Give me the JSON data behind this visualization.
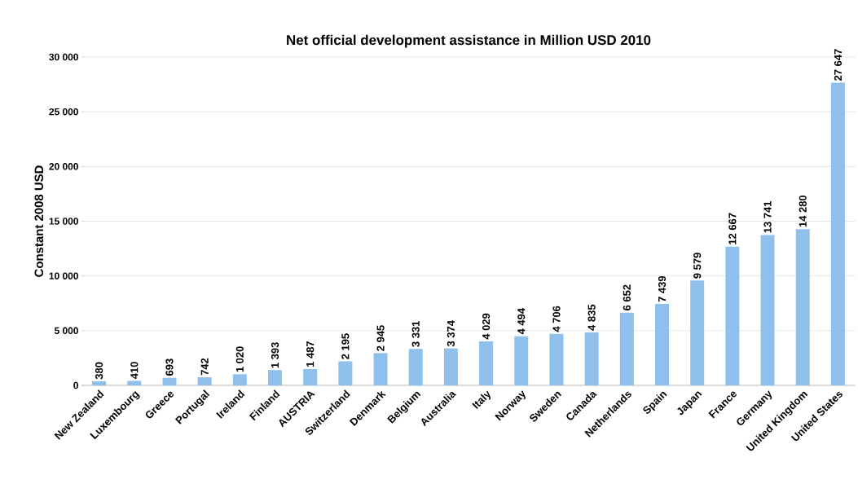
{
  "chart_data": {
    "type": "bar",
    "title": "Net official development assistance in Million USD 2010",
    "ylabel": "Constant 2008 USD",
    "categories": [
      "New Zealand",
      "Luxembourg",
      "Greece",
      "Portugal",
      "Ireland",
      "Finland",
      "AUSTRIA",
      "Switzerland",
      "Denmark",
      "Belgium",
      "Australia",
      "Italy",
      "Norway",
      "Sweden",
      "Canada",
      "Netherlands",
      "Spain",
      "Japan",
      "France",
      "Germany",
      "United Kingdom",
      "United States"
    ],
    "values": [
      380,
      410,
      693,
      742,
      1020,
      1393,
      1487,
      2195,
      2945,
      3331,
      3374,
      4029,
      4494,
      4706,
      4835,
      6652,
      7439,
      9579,
      12667,
      13741,
      14280,
      27647
    ],
    "value_labels": [
      "380",
      "410",
      "693",
      "742",
      "1 020",
      "1 393",
      "1 487",
      "2 195",
      "2 945",
      "3 331",
      "3 374",
      "4 029",
      "4 494",
      "4 706",
      "4 835",
      "6 652",
      "7 439",
      "9 579",
      "12 667",
      "13 741",
      "14 280",
      "27 647"
    ],
    "color": "#8fc0ec",
    "ylim": [
      0,
      30000
    ],
    "yticks": [
      {
        "value": 0,
        "label": "0"
      },
      {
        "value": 5000,
        "label": "5 000"
      },
      {
        "value": 10000,
        "label": "10 000"
      },
      {
        "value": 15000,
        "label": "15 000"
      },
      {
        "value": 20000,
        "label": "20 000"
      },
      {
        "value": 25000,
        "label": "25 000"
      },
      {
        "value": 30000,
        "label": "30 000"
      }
    ],
    "grid": "y"
  }
}
